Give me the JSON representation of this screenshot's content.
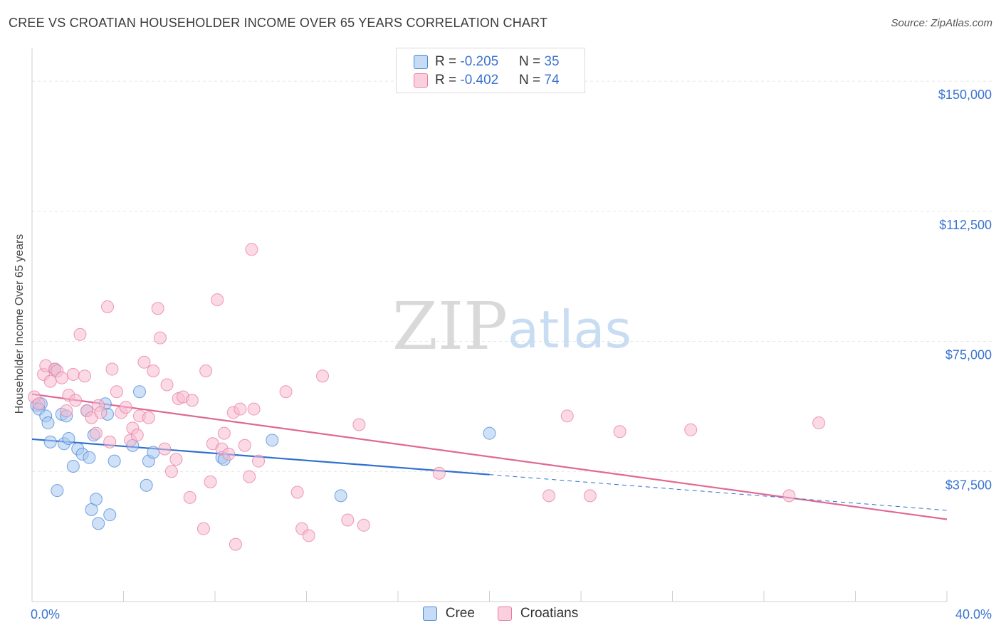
{
  "title": "CREE VS CROATIAN HOUSEHOLDER INCOME OVER 65 YEARS CORRELATION CHART",
  "source": "Source: ZipAtlas.com",
  "watermark": {
    "zip": "ZIP",
    "atlas": "atlas"
  },
  "legend": {
    "cree": {
      "r_label": "R = ",
      "r_value": "-0.205",
      "n_label": "N = ",
      "n_value": "35"
    },
    "croatians": {
      "r_label": "R = ",
      "r_value": "-0.402",
      "n_label": "N = ",
      "n_value": "74"
    }
  },
  "bottom_legend": {
    "cree": "Cree",
    "croatians": "Croatians"
  },
  "colors": {
    "cree_fill": "#a8c8f0",
    "cree_stroke": "#4a86d8",
    "cree_line": "#2f6fcf",
    "croatians_fill": "#f8bcd0",
    "croatians_stroke": "#e77aa0",
    "croatians_line": "#e06894",
    "axis_label": "#3a74d0",
    "grid": "#e6e6e6"
  },
  "chart_data": {
    "type": "scatter",
    "title": "CREE VS CROATIAN HOUSEHOLDER INCOME OVER 65 YEARS CORRELATION CHART",
    "xlabel": "",
    "ylabel": "Householder Income Over 65 years",
    "xlim": [
      0,
      40
    ],
    "ylim": [
      0,
      157000
    ],
    "x_tick_labels": [
      "0.0%",
      "40.0%"
    ],
    "y_ticks": [
      37500,
      75000,
      112500,
      150000
    ],
    "y_tick_labels": [
      "$37,500",
      "$75,000",
      "$112,500",
      "$150,000"
    ],
    "grid": true,
    "legend_position": "top-center",
    "series": [
      {
        "name": "Cree",
        "points": [
          [
            0.2,
            56500
          ],
          [
            0.4,
            57000
          ],
          [
            0.3,
            55500
          ],
          [
            0.6,
            53500
          ],
          [
            0.7,
            51500
          ],
          [
            0.8,
            46000
          ],
          [
            1.0,
            67000
          ],
          [
            1.1,
            32000
          ],
          [
            1.3,
            54000
          ],
          [
            1.4,
            45500
          ],
          [
            1.5,
            53500
          ],
          [
            1.6,
            47000
          ],
          [
            1.8,
            39000
          ],
          [
            2.0,
            44000
          ],
          [
            2.2,
            42500
          ],
          [
            2.4,
            55000
          ],
          [
            2.5,
            41500
          ],
          [
            2.6,
            26500
          ],
          [
            2.7,
            48000
          ],
          [
            2.8,
            29500
          ],
          [
            2.9,
            22500
          ],
          [
            3.2,
            57000
          ],
          [
            3.3,
            54000
          ],
          [
            3.4,
            25000
          ],
          [
            3.6,
            40500
          ],
          [
            4.4,
            45000
          ],
          [
            4.7,
            60500
          ],
          [
            5.0,
            33500
          ],
          [
            5.1,
            40500
          ],
          [
            5.3,
            43000
          ],
          [
            8.3,
            41500
          ],
          [
            8.4,
            41000
          ],
          [
            10.5,
            46500
          ],
          [
            13.5,
            30500
          ],
          [
            20.0,
            48500
          ]
        ],
        "trend": {
          "x": [
            0,
            20
          ],
          "y": [
            46800,
            36600
          ]
        },
        "trend_dashed": {
          "x": [
            20,
            40
          ],
          "y": [
            36600,
            26300
          ]
        }
      },
      {
        "name": "Croatians",
        "points": [
          [
            0.1,
            59000
          ],
          [
            0.3,
            57000
          ],
          [
            0.5,
            65500
          ],
          [
            0.6,
            68000
          ],
          [
            0.8,
            63500
          ],
          [
            1.0,
            67000
          ],
          [
            1.1,
            66500
          ],
          [
            1.3,
            64500
          ],
          [
            1.5,
            55000
          ],
          [
            1.6,
            59500
          ],
          [
            1.8,
            65500
          ],
          [
            1.9,
            58000
          ],
          [
            2.1,
            77000
          ],
          [
            2.3,
            65000
          ],
          [
            2.4,
            55000
          ],
          [
            2.6,
            53000
          ],
          [
            2.8,
            48500
          ],
          [
            2.9,
            56500
          ],
          [
            3.0,
            54500
          ],
          [
            3.3,
            85000
          ],
          [
            3.4,
            46000
          ],
          [
            3.5,
            67000
          ],
          [
            3.7,
            60500
          ],
          [
            3.9,
            54500
          ],
          [
            4.1,
            56000
          ],
          [
            4.3,
            46500
          ],
          [
            4.4,
            50000
          ],
          [
            4.6,
            48000
          ],
          [
            4.7,
            53500
          ],
          [
            4.9,
            69000
          ],
          [
            5.1,
            53000
          ],
          [
            5.3,
            66500
          ],
          [
            5.5,
            84500
          ],
          [
            5.6,
            76000
          ],
          [
            5.8,
            44000
          ],
          [
            5.9,
            62500
          ],
          [
            6.1,
            37500
          ],
          [
            6.3,
            41000
          ],
          [
            6.4,
            58500
          ],
          [
            6.6,
            59000
          ],
          [
            6.9,
            30000
          ],
          [
            7.0,
            58000
          ],
          [
            7.5,
            21000
          ],
          [
            7.6,
            66500
          ],
          [
            7.8,
            34500
          ],
          [
            7.9,
            45500
          ],
          [
            8.1,
            87000
          ],
          [
            8.3,
            44000
          ],
          [
            8.4,
            48500
          ],
          [
            8.6,
            42500
          ],
          [
            8.8,
            54500
          ],
          [
            8.9,
            16500
          ],
          [
            9.1,
            55500
          ],
          [
            9.3,
            45000
          ],
          [
            9.5,
            36000
          ],
          [
            9.6,
            101500
          ],
          [
            9.7,
            55500
          ],
          [
            9.9,
            40500
          ],
          [
            11.1,
            60500
          ],
          [
            11.6,
            31500
          ],
          [
            11.8,
            21000
          ],
          [
            12.1,
            19000
          ],
          [
            12.7,
            65000
          ],
          [
            13.8,
            23500
          ],
          [
            14.3,
            51000
          ],
          [
            14.5,
            22000
          ],
          [
            17.8,
            37000
          ],
          [
            22.6,
            30500
          ],
          [
            23.4,
            53500
          ],
          [
            24.4,
            30500
          ],
          [
            25.7,
            49000
          ],
          [
            28.8,
            49500
          ],
          [
            33.1,
            30500
          ],
          [
            34.4,
            51500
          ]
        ],
        "trend": {
          "x": [
            0,
            40
          ],
          "y": [
            59800,
            23700
          ]
        }
      }
    ]
  }
}
